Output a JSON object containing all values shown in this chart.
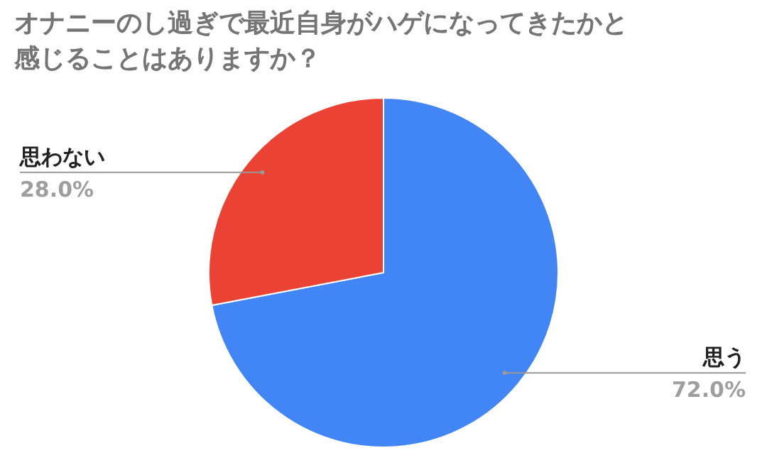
{
  "chart_data": {
    "type": "pie",
    "title": "オナニーのし過ぎで最近自身がハゲになってきたかと感じることはありますか？",
    "categories": [
      "思う",
      "思わない"
    ],
    "values": [
      72.0,
      28.0
    ],
    "colors": [
      "#4285f4",
      "#ea4335"
    ],
    "value_labels": [
      "72.0%",
      "28.0%"
    ]
  }
}
